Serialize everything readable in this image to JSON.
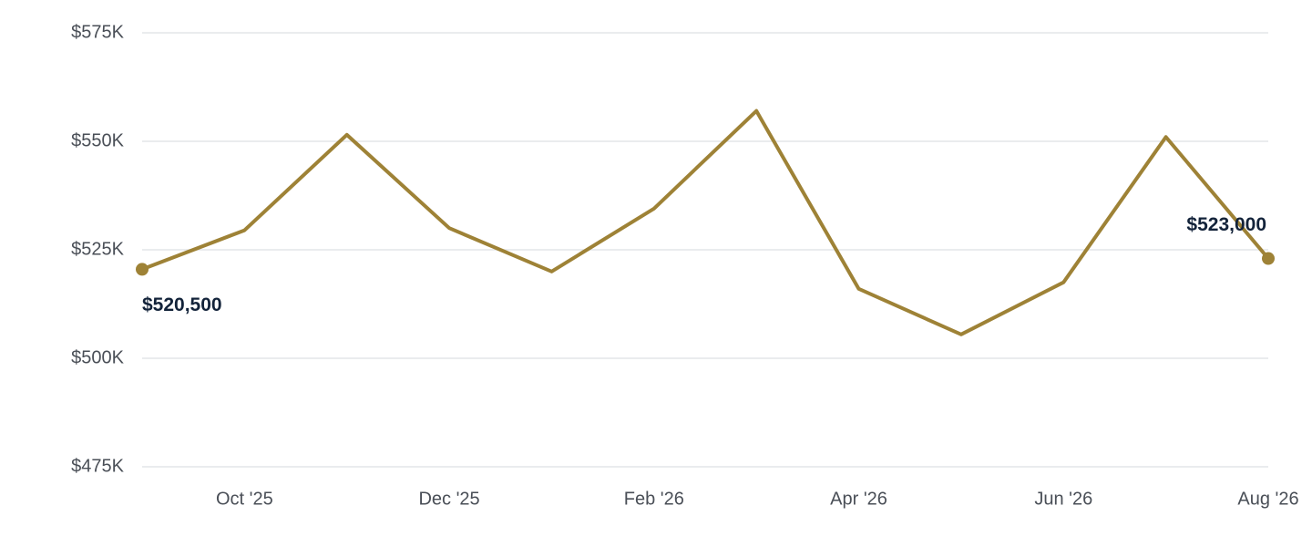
{
  "chart_data": {
    "type": "line",
    "categories": [
      null,
      "Oct '25",
      null,
      "Dec '25",
      null,
      "Feb '26",
      null,
      "Apr '26",
      null,
      "Jun '26",
      null,
      "Aug '26"
    ],
    "values": [
      520500,
      529500,
      551500,
      530000,
      520000,
      534500,
      557000,
      516000,
      505500,
      517500,
      551000,
      523000
    ],
    "value_labels": [
      "$520,500",
      null,
      null,
      null,
      null,
      null,
      null,
      null,
      null,
      null,
      null,
      "$523,000"
    ],
    "color": "#9e8236",
    "ylim": [
      475000,
      575000
    ],
    "yticks": [
      {
        "value": 475000,
        "label": "$475K"
      },
      {
        "value": 500000,
        "label": "$500K"
      },
      {
        "value": 525000,
        "label": "$525K"
      },
      {
        "value": 550000,
        "label": "$550K"
      },
      {
        "value": 575000,
        "label": "$575K"
      }
    ],
    "grid": true
  }
}
